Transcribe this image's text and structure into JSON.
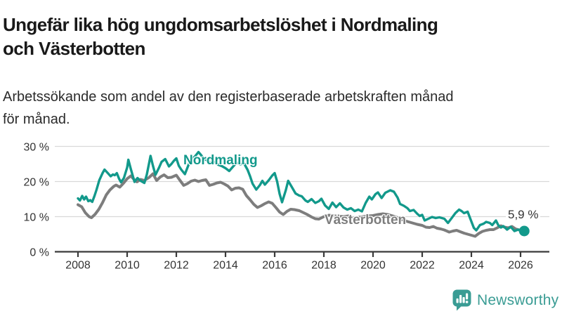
{
  "header": {
    "title_line1": "Ungefär lika hög ungdomsarbetslöshet i Nordmaling",
    "title_line2": "och Västerbotten",
    "subtitle_line1": "Arbetssökande som andel av den registerbaserade arbetskraften månad",
    "subtitle_line2": "för månad."
  },
  "chart_data": {
    "type": "line",
    "title": "Ungefär lika hög ungdomsarbetslöshet i Nordmaling och Västerbotten",
    "subtitle": "Arbetssökande som andel av den registerbaserade arbetskraften månad för månad.",
    "xlabel": "",
    "ylabel": "",
    "ylim": [
      0,
      30
    ],
    "xlim": [
      2007.8,
      2027.2
    ],
    "grid": "horizontal",
    "grid_color": "#d9d9d9",
    "axis_color": "#3a3a3a",
    "tick_label_color": "#333333",
    "end_label": "5,9 %",
    "legend_position": "inline-labels",
    "x_ticks": [
      {
        "value": 2008,
        "label": "2008"
      },
      {
        "value": 2010,
        "label": "2010"
      },
      {
        "value": 2012,
        "label": "2012"
      },
      {
        "value": 2014,
        "label": "2014"
      },
      {
        "value": 2016,
        "label": "2016"
      },
      {
        "value": 2018,
        "label": "2018"
      },
      {
        "value": 2020,
        "label": "2020"
      },
      {
        "value": 2022,
        "label": "2022"
      },
      {
        "value": 2024,
        "label": "2024"
      },
      {
        "value": 2026,
        "label": "2026"
      }
    ],
    "y_ticks": [
      {
        "value": 30,
        "label": "30 %"
      },
      {
        "value": 20,
        "label": "20 %"
      },
      {
        "value": 10,
        "label": "10 %"
      },
      {
        "value": 0,
        "label": "0 %"
      }
    ],
    "series": [
      {
        "name": "Nordmaling",
        "color": "#12998b",
        "line_width": 3.4,
        "end_dot": true,
        "points": [
          [
            2008.0,
            15.2
          ],
          [
            2008.08,
            14.6
          ],
          [
            2008.17,
            15.9
          ],
          [
            2008.25,
            14.9
          ],
          [
            2008.33,
            15.7
          ],
          [
            2008.42,
            14.4
          ],
          [
            2008.5,
            14.7
          ],
          [
            2008.58,
            14.2
          ],
          [
            2008.67,
            15.9
          ],
          [
            2008.75,
            17.6
          ],
          [
            2008.87,
            20.4
          ],
          [
            2009.0,
            22.4
          ],
          [
            2009.08,
            23.4
          ],
          [
            2009.2,
            22.5
          ],
          [
            2009.33,
            21.5
          ],
          [
            2009.42,
            22.0
          ],
          [
            2009.5,
            21.8
          ],
          [
            2009.58,
            22.4
          ],
          [
            2009.67,
            20.8
          ],
          [
            2009.75,
            19.8
          ],
          [
            2009.87,
            21.0
          ],
          [
            2010.0,
            24.0
          ],
          [
            2010.05,
            26.2
          ],
          [
            2010.15,
            23.5
          ],
          [
            2010.3,
            19.9
          ],
          [
            2010.42,
            21.0
          ],
          [
            2010.55,
            20.2
          ],
          [
            2010.7,
            19.6
          ],
          [
            2010.8,
            22.0
          ],
          [
            2010.95,
            27.3
          ],
          [
            2011.05,
            24.5
          ],
          [
            2011.15,
            21.9
          ],
          [
            2011.3,
            24.0
          ],
          [
            2011.4,
            25.6
          ],
          [
            2011.55,
            26.4
          ],
          [
            2011.7,
            24.3
          ],
          [
            2011.8,
            25.0
          ],
          [
            2011.9,
            25.9
          ],
          [
            2012.0,
            26.6
          ],
          [
            2012.1,
            24.5
          ],
          [
            2012.2,
            23.4
          ],
          [
            2012.35,
            22.1
          ],
          [
            2012.5,
            24.8
          ],
          [
            2012.6,
            26.2
          ],
          [
            2012.75,
            27.1
          ],
          [
            2012.9,
            28.4
          ],
          [
            2013.0,
            27.6
          ],
          [
            2013.1,
            26.6
          ],
          [
            2013.25,
            26.0
          ],
          [
            2013.4,
            25.2
          ],
          [
            2013.55,
            25.6
          ],
          [
            2013.7,
            24.8
          ],
          [
            2013.85,
            24.4
          ],
          [
            2014.0,
            23.8
          ],
          [
            2014.15,
            23.0
          ],
          [
            2014.3,
            24.2
          ],
          [
            2014.45,
            25.4
          ],
          [
            2014.6,
            24.9
          ],
          [
            2014.75,
            25.2
          ],
          [
            2014.9,
            23.3
          ],
          [
            2015.0,
            21.5
          ],
          [
            2015.1,
            19.4
          ],
          [
            2015.25,
            17.7
          ],
          [
            2015.4,
            19.0
          ],
          [
            2015.5,
            20.2
          ],
          [
            2015.6,
            19.1
          ],
          [
            2015.75,
            20.3
          ],
          [
            2015.9,
            21.7
          ],
          [
            2016.0,
            22.4
          ],
          [
            2016.1,
            20.0
          ],
          [
            2016.2,
            16.5
          ],
          [
            2016.3,
            14.1
          ],
          [
            2016.45,
            17.5
          ],
          [
            2016.55,
            20.2
          ],
          [
            2016.7,
            18.4
          ],
          [
            2016.85,
            16.6
          ],
          [
            2017.0,
            16.0
          ],
          [
            2017.1,
            15.8
          ],
          [
            2017.25,
            14.6
          ],
          [
            2017.35,
            14.2
          ],
          [
            2017.5,
            15.0
          ],
          [
            2017.65,
            13.9
          ],
          [
            2017.8,
            14.4
          ],
          [
            2017.9,
            15.1
          ],
          [
            2018.05,
            13.2
          ],
          [
            2018.2,
            12.2
          ],
          [
            2018.35,
            14.0
          ],
          [
            2018.5,
            12.7
          ],
          [
            2018.65,
            13.8
          ],
          [
            2018.8,
            12.6
          ],
          [
            2018.95,
            12.0
          ],
          [
            2019.1,
            12.4
          ],
          [
            2019.25,
            11.6
          ],
          [
            2019.4,
            12.0
          ],
          [
            2019.55,
            11.5
          ],
          [
            2019.7,
            13.9
          ],
          [
            2019.85,
            15.7
          ],
          [
            2019.95,
            14.9
          ],
          [
            2020.1,
            16.4
          ],
          [
            2020.2,
            16.9
          ],
          [
            2020.35,
            15.3
          ],
          [
            2020.5,
            16.8
          ],
          [
            2020.7,
            17.5
          ],
          [
            2020.85,
            17.1
          ],
          [
            2021.0,
            15.4
          ],
          [
            2021.1,
            13.6
          ],
          [
            2021.25,
            13.1
          ],
          [
            2021.4,
            12.4
          ],
          [
            2021.5,
            11.6
          ],
          [
            2021.65,
            11.9
          ],
          [
            2021.8,
            10.8
          ],
          [
            2021.9,
            10.2
          ],
          [
            2022.0,
            10.5
          ],
          [
            2022.1,
            8.9
          ],
          [
            2022.25,
            9.4
          ],
          [
            2022.4,
            9.9
          ],
          [
            2022.55,
            9.6
          ],
          [
            2022.7,
            9.8
          ],
          [
            2022.9,
            9.4
          ],
          [
            2023.05,
            8.2
          ],
          [
            2023.2,
            9.6
          ],
          [
            2023.35,
            11.0
          ],
          [
            2023.5,
            12.0
          ],
          [
            2023.6,
            11.6
          ],
          [
            2023.7,
            11.0
          ],
          [
            2023.85,
            11.4
          ],
          [
            2023.95,
            9.5
          ],
          [
            2024.1,
            6.8
          ],
          [
            2024.2,
            6.1
          ],
          [
            2024.35,
            7.6
          ],
          [
            2024.5,
            8.0
          ],
          [
            2024.6,
            8.5
          ],
          [
            2024.75,
            8.2
          ],
          [
            2024.85,
            7.6
          ],
          [
            2025.0,
            8.9
          ],
          [
            2025.1,
            7.5
          ],
          [
            2025.2,
            6.9
          ],
          [
            2025.3,
            7.3
          ],
          [
            2025.45,
            6.3
          ],
          [
            2025.6,
            7.1
          ],
          [
            2025.75,
            5.9
          ],
          [
            2025.9,
            6.3
          ],
          [
            2026.0,
            6.0
          ],
          [
            2026.15,
            5.9
          ]
        ]
      },
      {
        "name": "Västerbotten",
        "color": "#7d7d7d",
        "line_width": 4,
        "end_dot": false,
        "points": [
          [
            2008.0,
            13.4
          ],
          [
            2008.15,
            12.8
          ],
          [
            2008.3,
            11.1
          ],
          [
            2008.45,
            10.0
          ],
          [
            2008.55,
            9.7
          ],
          [
            2008.7,
            10.7
          ],
          [
            2008.85,
            12.1
          ],
          [
            2009.0,
            14.0
          ],
          [
            2009.15,
            16.2
          ],
          [
            2009.3,
            17.6
          ],
          [
            2009.45,
            18.6
          ],
          [
            2009.55,
            19.0
          ],
          [
            2009.7,
            18.4
          ],
          [
            2009.85,
            19.5
          ],
          [
            2010.0,
            20.8
          ],
          [
            2010.15,
            21.6
          ],
          [
            2010.3,
            20.4
          ],
          [
            2010.4,
            19.9
          ],
          [
            2010.55,
            20.6
          ],
          [
            2010.7,
            20.3
          ],
          [
            2010.9,
            21.2
          ],
          [
            2011.05,
            22.2
          ],
          [
            2011.2,
            20.3
          ],
          [
            2011.35,
            21.3
          ],
          [
            2011.5,
            21.9
          ],
          [
            2011.65,
            21.1
          ],
          [
            2011.8,
            21.2
          ],
          [
            2012.0,
            21.8
          ],
          [
            2012.15,
            20.3
          ],
          [
            2012.3,
            18.9
          ],
          [
            2012.45,
            19.4
          ],
          [
            2012.6,
            20.1
          ],
          [
            2012.75,
            20.4
          ],
          [
            2012.9,
            20.0
          ],
          [
            2013.05,
            20.3
          ],
          [
            2013.2,
            20.5
          ],
          [
            2013.35,
            18.9
          ],
          [
            2013.5,
            19.2
          ],
          [
            2013.65,
            19.6
          ],
          [
            2013.8,
            19.8
          ],
          [
            2013.95,
            19.3
          ],
          [
            2014.1,
            18.7
          ],
          [
            2014.25,
            17.6
          ],
          [
            2014.4,
            18.1
          ],
          [
            2014.55,
            18.2
          ],
          [
            2014.7,
            17.8
          ],
          [
            2014.85,
            16.0
          ],
          [
            2015.0,
            14.8
          ],
          [
            2015.15,
            13.5
          ],
          [
            2015.3,
            12.6
          ],
          [
            2015.45,
            13.1
          ],
          [
            2015.6,
            13.7
          ],
          [
            2015.75,
            14.2
          ],
          [
            2015.9,
            13.8
          ],
          [
            2016.05,
            12.6
          ],
          [
            2016.2,
            11.3
          ],
          [
            2016.35,
            10.6
          ],
          [
            2016.5,
            11.5
          ],
          [
            2016.65,
            12.1
          ],
          [
            2016.8,
            12.0
          ],
          [
            2017.0,
            11.7
          ],
          [
            2017.15,
            11.2
          ],
          [
            2017.3,
            10.7
          ],
          [
            2017.5,
            9.9
          ],
          [
            2017.65,
            9.4
          ],
          [
            2017.8,
            9.3
          ],
          [
            2018.0,
            10.0
          ],
          [
            2018.2,
            10.4
          ],
          [
            2018.4,
            10.3
          ],
          [
            2018.6,
            10.1
          ],
          [
            2018.8,
            10.0
          ],
          [
            2019.0,
            10.2
          ],
          [
            2019.2,
            9.7
          ],
          [
            2019.4,
            9.8
          ],
          [
            2019.6,
            10.0
          ],
          [
            2019.8,
            10.2
          ],
          [
            2020.0,
            10.3
          ],
          [
            2020.2,
            10.6
          ],
          [
            2020.4,
            10.8
          ],
          [
            2020.6,
            10.6
          ],
          [
            2020.8,
            10.2
          ],
          [
            2021.0,
            9.7
          ],
          [
            2021.2,
            9.1
          ],
          [
            2021.4,
            8.6
          ],
          [
            2021.6,
            8.2
          ],
          [
            2021.8,
            7.8
          ],
          [
            2022.0,
            7.5
          ],
          [
            2022.15,
            7.0
          ],
          [
            2022.3,
            6.9
          ],
          [
            2022.45,
            7.2
          ],
          [
            2022.6,
            6.7
          ],
          [
            2022.75,
            6.5
          ],
          [
            2022.9,
            6.2
          ],
          [
            2023.1,
            5.6
          ],
          [
            2023.25,
            5.9
          ],
          [
            2023.4,
            6.1
          ],
          [
            2023.55,
            5.7
          ],
          [
            2023.7,
            5.3
          ],
          [
            2023.85,
            5.0
          ],
          [
            2024.0,
            4.7
          ],
          [
            2024.15,
            4.4
          ],
          [
            2024.3,
            5.2
          ],
          [
            2024.45,
            5.8
          ],
          [
            2024.6,
            6.1
          ],
          [
            2024.75,
            6.3
          ],
          [
            2024.9,
            6.3
          ],
          [
            2025.05,
            6.8
          ],
          [
            2025.2,
            7.4
          ],
          [
            2025.35,
            7.0
          ],
          [
            2025.5,
            6.8
          ],
          [
            2025.65,
            7.2
          ],
          [
            2025.8,
            6.5
          ],
          [
            2026.0,
            6.1
          ],
          [
            2026.1,
            5.9
          ]
        ]
      }
    ]
  },
  "branding": {
    "logo_text": "Newsworthy",
    "logo_icon": "bar-chart-speech-bubble-icon",
    "logo_color": "#3a9c94"
  }
}
